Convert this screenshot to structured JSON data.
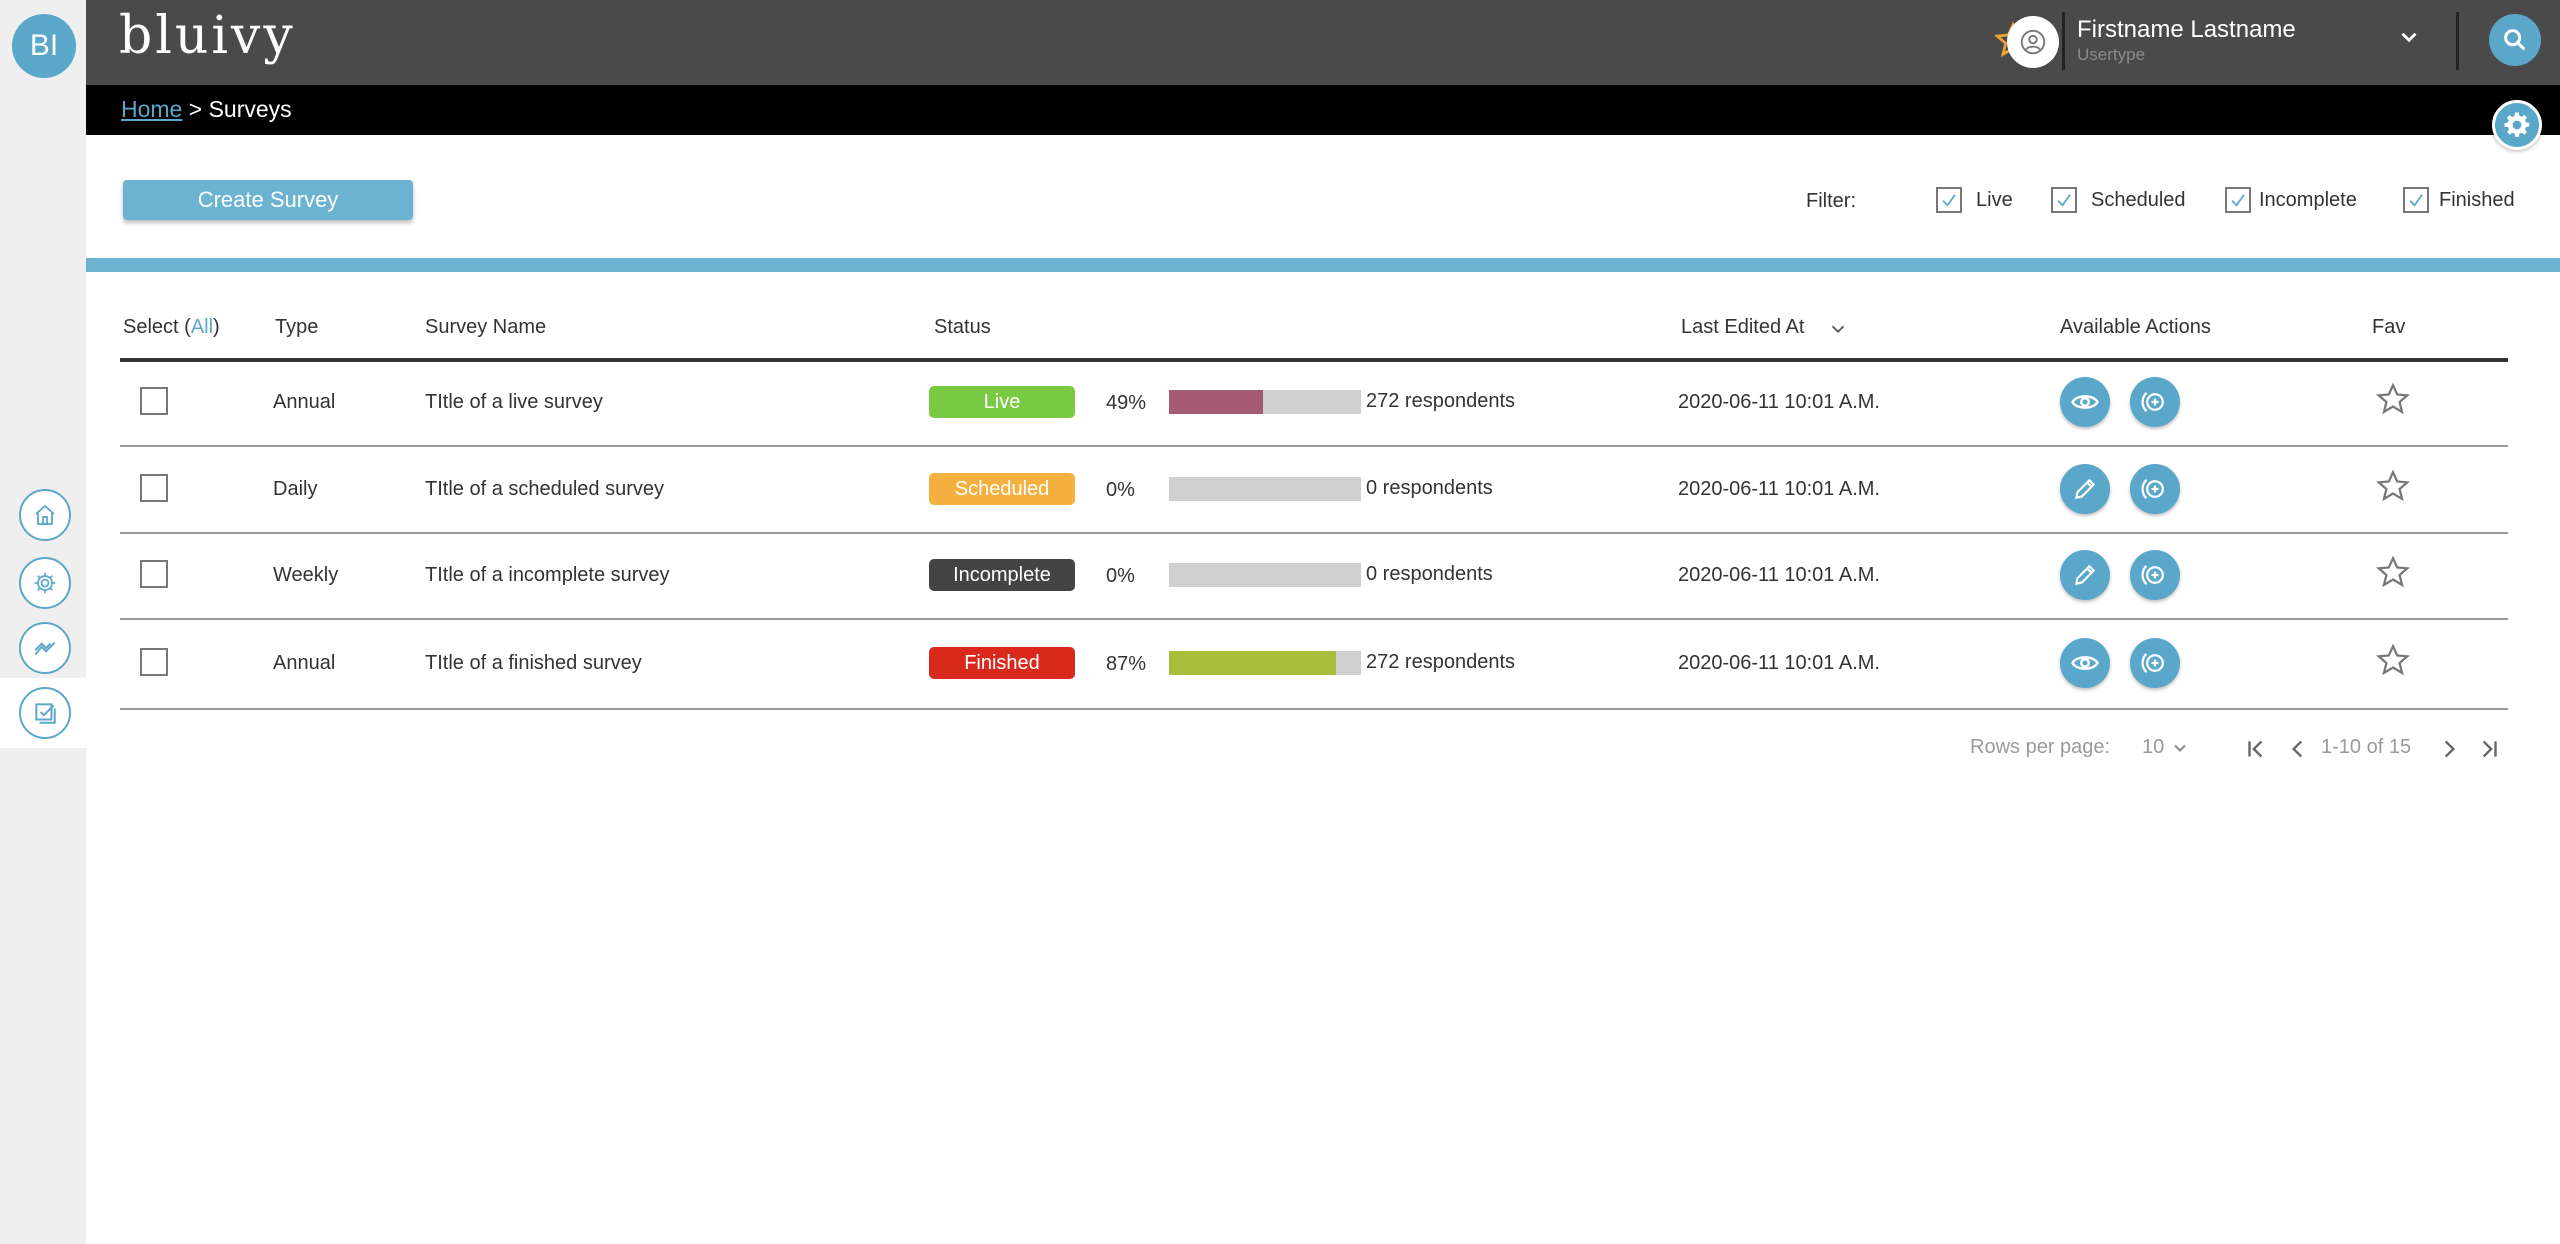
{
  "app": {
    "logo_initials": "BI",
    "brand_name": "bluivy"
  },
  "header": {
    "user_name": "Firstname Lastname",
    "user_type": "Usertype"
  },
  "breadcrumb": {
    "home": "Home",
    "separator": ">",
    "current": "Surveys"
  },
  "toolbar": {
    "create_label": "Create Survey",
    "filter_label": "Filter:",
    "filters": [
      {
        "label": "Live",
        "checked": true
      },
      {
        "label": "Scheduled",
        "checked": true
      },
      {
        "label": "Incomplete",
        "checked": true
      },
      {
        "label": "Finished",
        "checked": true
      }
    ]
  },
  "table": {
    "headers": {
      "select": "Select (",
      "select_all": "All",
      "select_close": ")",
      "type": "Type",
      "name": "Survey Name",
      "status": "Status",
      "last_edited": "Last Edited At",
      "actions": "Available Actions",
      "fav": "Fav"
    },
    "rows": [
      {
        "type": "Annual",
        "name": "TItle of a live survey",
        "status": "Live",
        "status_color": "#7ac943",
        "percent": "49%",
        "progress": 0.49,
        "bar_color": "#a35a72",
        "respondents": "272 respondents",
        "edited": "2020-06-11 10:01 A.M.",
        "primary_action": "view"
      },
      {
        "type": "Daily",
        "name": "TItle of a scheduled survey",
        "status": "Scheduled",
        "status_color": "#f5b040",
        "percent": "0%",
        "progress": 0,
        "bar_color": "#cfcfcf",
        "respondents": "0 respondents",
        "edited": "2020-06-11 10:01 A.M.",
        "primary_action": "edit"
      },
      {
        "type": "Weekly",
        "name": "TItle of a incomplete survey",
        "status": "Incomplete",
        "status_color": "#444444",
        "percent": "0%",
        "progress": 0,
        "bar_color": "#cfcfcf",
        "respondents": "0 respondents",
        "edited": "2020-06-11 10:01 A.M.",
        "primary_action": "edit"
      },
      {
        "type": "Annual",
        "name": "TItle of a finished survey",
        "status": "Finished",
        "status_color": "#d9291c",
        "percent": "87%",
        "progress": 0.87,
        "bar_color": "#a8bd3a",
        "respondents": "272 respondents",
        "edited": "2020-06-11 10:01 A.M.",
        "primary_action": "view"
      }
    ]
  },
  "pagination": {
    "rows_per_page_label": "Rows per page:",
    "rows_per_page": "10",
    "range": "1-10 of 15"
  },
  "colors": {
    "accent": "#5aa7c9",
    "topbar": "#4a4a4a",
    "star_favorite": "#f0a533"
  }
}
